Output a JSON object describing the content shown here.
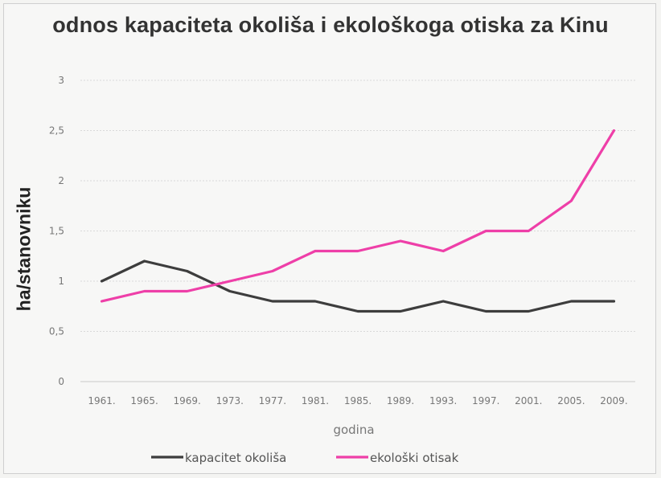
{
  "chart_data": {
    "type": "line",
    "title": "odnos kapaciteta okoliša i ekološkoga otiska za Kinu",
    "xlabel": "godina",
    "ylabel": "ha/stanovniku",
    "categories": [
      "1961.",
      "1965.",
      "1969.",
      "1973.",
      "1977.",
      "1981.",
      "1985.",
      "1989.",
      "1993.",
      "1997.",
      "2001.",
      "2005.",
      "2009."
    ],
    "yticks": [
      "0",
      "0,5",
      "1",
      "1,5",
      "2",
      "2,5",
      "3"
    ],
    "ylim": [
      0,
      3
    ],
    "grid": true,
    "legend_position": "bottom",
    "series": [
      {
        "name": "kapacitet okoliša",
        "color": "#3d3d3d",
        "values": [
          1.0,
          1.2,
          1.1,
          0.9,
          0.8,
          0.8,
          0.7,
          0.7,
          0.8,
          0.7,
          0.7,
          0.8,
          0.8
        ]
      },
      {
        "name": "ekološki otisak",
        "color": "#ee3fa8",
        "values": [
          0.8,
          0.9,
          0.9,
          1.0,
          1.1,
          1.3,
          1.3,
          1.4,
          1.3,
          1.5,
          1.5,
          1.8,
          2.5
        ]
      }
    ]
  }
}
